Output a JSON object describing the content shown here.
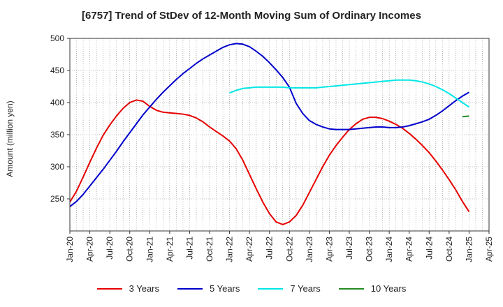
{
  "title": "[6757]  Trend of StDev of 12-Month Moving Sum of Ordinary Incomes",
  "chart_data": {
    "type": "line",
    "title": "[6757]  Trend of StDev of 12-Month Moving Sum of Ordinary Incomes",
    "xlabel": "",
    "ylabel": "Amount (million yen)",
    "ylim": [
      200,
      500
    ],
    "yticks": [
      250,
      300,
      350,
      400,
      450,
      500
    ],
    "x_tick_labels": [
      "Jan-20",
      "Apr-20",
      "Jul-20",
      "Oct-20",
      "Jan-21",
      "Apr-21",
      "Jul-21",
      "Oct-21",
      "Jan-22",
      "Apr-22",
      "Jul-22",
      "Oct-22",
      "Jan-23",
      "Apr-23",
      "Jul-23",
      "Oct-23",
      "Jan-24",
      "Apr-24",
      "Jul-24",
      "Oct-24",
      "Jan-25",
      "Apr-25"
    ],
    "grid": true,
    "legend_position": "bottom",
    "series": [
      {
        "name": "3 Years",
        "color": "#e60000",
        "x": [
          "2020-01",
          "2020-02",
          "2020-03",
          "2020-04",
          "2020-05",
          "2020-06",
          "2020-07",
          "2020-08",
          "2020-09",
          "2020-10",
          "2020-11",
          "2020-12",
          "2021-01",
          "2021-02",
          "2021-03",
          "2021-04",
          "2021-05",
          "2021-06",
          "2021-07",
          "2021-08",
          "2021-09",
          "2021-10",
          "2021-11",
          "2021-12",
          "2022-01",
          "2022-02",
          "2022-03",
          "2022-04",
          "2022-05",
          "2022-06",
          "2022-07",
          "2022-08",
          "2022-09",
          "2022-10",
          "2022-11",
          "2022-12",
          "2023-01",
          "2023-02",
          "2023-03",
          "2023-04",
          "2023-05",
          "2023-06",
          "2023-07",
          "2023-08",
          "2023-09",
          "2023-10",
          "2023-11",
          "2023-12",
          "2024-01",
          "2024-02",
          "2024-03",
          "2024-04",
          "2024-05",
          "2024-06",
          "2024-07",
          "2024-08",
          "2024-09",
          "2024-10",
          "2024-11",
          "2024-12",
          "2025-01"
        ],
        "y": [
          245,
          262,
          284,
          307,
          329,
          349,
          365,
          379,
          391,
          400,
          404,
          402,
          394,
          388,
          385,
          384,
          383,
          382,
          380,
          376,
          370,
          362,
          355,
          348,
          340,
          328,
          310,
          288,
          266,
          245,
          227,
          214,
          210,
          214,
          224,
          240,
          260,
          280,
          300,
          318,
          333,
          346,
          358,
          367,
          374,
          377,
          377,
          375,
          371,
          366,
          360,
          352,
          343,
          333,
          322,
          309,
          295,
          280,
          264,
          246,
          230
        ]
      },
      {
        "name": "5 Years",
        "color": "#0000cc",
        "x": [
          "2020-01",
          "2020-02",
          "2020-03",
          "2020-04",
          "2020-05",
          "2020-06",
          "2020-07",
          "2020-08",
          "2020-09",
          "2020-10",
          "2020-11",
          "2020-12",
          "2021-01",
          "2021-02",
          "2021-03",
          "2021-04",
          "2021-05",
          "2021-06",
          "2021-07",
          "2021-08",
          "2021-09",
          "2021-10",
          "2021-11",
          "2021-12",
          "2022-01",
          "2022-02",
          "2022-03",
          "2022-04",
          "2022-05",
          "2022-06",
          "2022-07",
          "2022-08",
          "2022-09",
          "2022-10",
          "2022-11",
          "2022-12",
          "2023-01",
          "2023-02",
          "2023-03",
          "2023-04",
          "2023-05",
          "2023-06",
          "2023-07",
          "2023-08",
          "2023-09",
          "2023-10",
          "2023-11",
          "2023-12",
          "2024-01",
          "2024-02",
          "2024-03",
          "2024-04",
          "2024-05",
          "2024-06",
          "2024-07",
          "2024-08",
          "2024-09",
          "2024-10",
          "2024-11",
          "2024-12",
          "2025-01"
        ],
        "y": [
          238,
          246,
          257,
          270,
          283,
          296,
          310,
          324,
          339,
          353,
          367,
          381,
          393,
          405,
          416,
          426,
          436,
          445,
          453,
          461,
          468,
          474,
          480,
          486,
          490,
          492,
          491,
          487,
          480,
          472,
          462,
          451,
          439,
          424,
          399,
          383,
          372,
          366,
          362,
          359,
          358,
          358,
          358,
          359,
          360,
          361,
          362,
          362,
          361,
          361,
          362,
          364,
          367,
          370,
          374,
          380,
          387,
          395,
          403,
          410,
          416
        ]
      },
      {
        "name": "7 Years",
        "color": "#00e6e6",
        "x": [
          "2022-01",
          "2022-02",
          "2022-03",
          "2022-04",
          "2022-05",
          "2022-06",
          "2022-07",
          "2022-08",
          "2022-09",
          "2022-10",
          "2022-11",
          "2022-12",
          "2023-01",
          "2023-02",
          "2023-03",
          "2023-04",
          "2023-05",
          "2023-06",
          "2023-07",
          "2023-08",
          "2023-09",
          "2023-10",
          "2023-11",
          "2023-12",
          "2024-01",
          "2024-02",
          "2024-03",
          "2024-04",
          "2024-05",
          "2024-06",
          "2024-07",
          "2024-08",
          "2024-09",
          "2024-10",
          "2024-11",
          "2024-12",
          "2025-01"
        ],
        "y": [
          415,
          419,
          422,
          423,
          424,
          424,
          424,
          424,
          424,
          423,
          423,
          423,
          423,
          423,
          424,
          425,
          426,
          427,
          428,
          429,
          430,
          431,
          432,
          433,
          434,
          435,
          435,
          435,
          434,
          432,
          429,
          425,
          420,
          414,
          407,
          400,
          393
        ]
      },
      {
        "name": "10 Years",
        "color": "#228b22",
        "x": [
          "2024-12",
          "2025-01"
        ],
        "y": [
          378,
          379
        ]
      }
    ]
  }
}
